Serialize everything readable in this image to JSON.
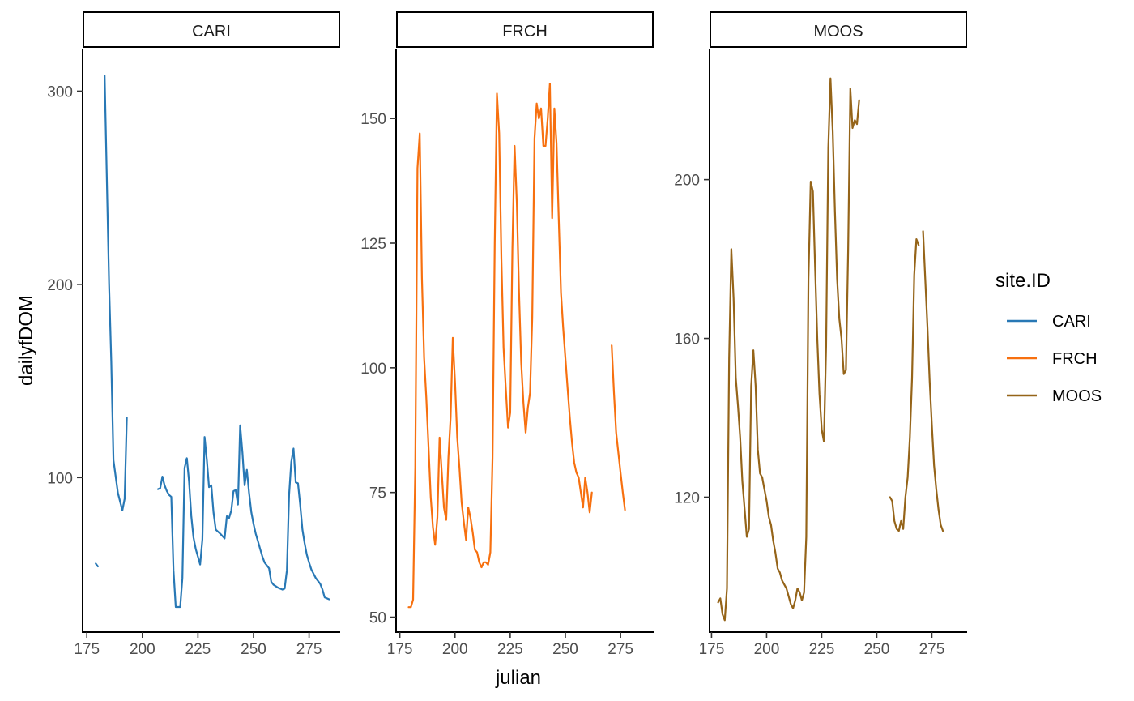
{
  "chart_data": {
    "type": "line",
    "xlabel": "julian",
    "ylabel": "dailyfDOM",
    "legend": {
      "title": "site.ID",
      "position": "right",
      "entries": [
        {
          "name": "CARI",
          "color": "#2878B5"
        },
        {
          "name": "FRCH",
          "color": "#F7700F"
        },
        {
          "name": "MOOS",
          "color": "#956419"
        }
      ]
    },
    "grid": false,
    "panels": [
      {
        "strip": "CARI",
        "color": "#2878B5",
        "xlim": [
          173.1,
          289
        ],
        "ylim": [
          20,
          322
        ],
        "xticks": [
          175,
          200,
          225,
          250,
          275
        ],
        "yticks": [
          100,
          200,
          300
        ],
        "segments": [
          [
            [
              179,
              55.5
            ],
            [
              180,
              54
            ]
          ],
          [
            [
              183,
              308
            ],
            [
              185,
              200
            ],
            [
              186,
              160
            ],
            [
              187,
              109
            ],
            [
              189,
              92
            ],
            [
              191,
              83
            ],
            [
              192,
              89
            ],
            [
              193,
              131
            ]
          ],
          [
            [
              207,
              94
            ],
            [
              208,
              94.5
            ],
            [
              209,
              100.5
            ],
            [
              210,
              96
            ],
            [
              211,
              93
            ],
            [
              212,
              91
            ],
            [
              213,
              90
            ],
            [
              214,
              52
            ],
            [
              215,
              33
            ],
            [
              217,
              33
            ],
            [
              218,
              48
            ],
            [
              219,
              105
            ],
            [
              220,
              110
            ],
            [
              221,
              98
            ],
            [
              222,
              80
            ],
            [
              223,
              69
            ],
            [
              224,
              63
            ],
            [
              225,
              59
            ],
            [
              226,
              55
            ],
            [
              227,
              68
            ],
            [
              228,
              121
            ],
            [
              229,
              109
            ],
            [
              230,
              95
            ],
            [
              231,
              96
            ],
            [
              232,
              82
            ],
            [
              233,
              73
            ],
            [
              235,
              71
            ],
            [
              237,
              68.5
            ],
            [
              238,
              80
            ],
            [
              239,
              79
            ],
            [
              240,
              83
            ],
            [
              241,
              93
            ],
            [
              242,
              93.5
            ],
            [
              243,
              86
            ],
            [
              244,
              127
            ],
            [
              245,
              113
            ],
            [
              246,
              96
            ],
            [
              247,
              104
            ],
            [
              248,
              92
            ],
            [
              249,
              82
            ],
            [
              250,
              76
            ],
            [
              251,
              71
            ],
            [
              252,
              67
            ],
            [
              253,
              63
            ],
            [
              254,
              59
            ],
            [
              255,
              56
            ],
            [
              257,
              53
            ],
            [
              258,
              46
            ],
            [
              259,
              44.5
            ],
            [
              261,
              43
            ],
            [
              263,
              42
            ],
            [
              264,
              42.5
            ],
            [
              265,
              52
            ],
            [
              266,
              91
            ],
            [
              267,
              108
            ],
            [
              268,
              115
            ],
            [
              269,
              97.5
            ],
            [
              270,
              97
            ],
            [
              271,
              86
            ],
            [
              272,
              73
            ],
            [
              273,
              66
            ],
            [
              274,
              60
            ],
            [
              275,
              56
            ],
            [
              276,
              52.5
            ],
            [
              278,
              48
            ],
            [
              280,
              45
            ],
            [
              281,
              42
            ],
            [
              282,
              38
            ],
            [
              284,
              37
            ]
          ]
        ]
      },
      {
        "strip": "FRCH",
        "color": "#F7700F",
        "xlim": [
          173.3,
          290
        ],
        "ylim": [
          47,
          164
        ],
        "xticks": [
          175,
          200,
          225,
          250,
          275
        ],
        "yticks": [
          50,
          75,
          100,
          125,
          150
        ],
        "segments": [
          [
            [
              179,
              52
            ],
            [
              180,
              52
            ],
            [
              181,
              53.5
            ],
            [
              182,
              80
            ],
            [
              183,
              140
            ],
            [
              184,
              147
            ],
            [
              185,
              118
            ],
            [
              186,
              102
            ],
            [
              187,
              94
            ],
            [
              188,
              84
            ],
            [
              189,
              74
            ],
            [
              190,
              68
            ],
            [
              191,
              64.5
            ],
            [
              192,
              70
            ],
            [
              193,
              86
            ],
            [
              194,
              79
            ],
            [
              195,
              72
            ],
            [
              196,
              69.5
            ],
            [
              197,
              82
            ],
            [
              198,
              90
            ],
            [
              199,
              106
            ],
            [
              200,
              97
            ],
            [
              201,
              86
            ],
            [
              202,
              80
            ],
            [
              203,
              73
            ],
            [
              204,
              69
            ],
            [
              205,
              65.5
            ],
            [
              206,
              72
            ],
            [
              207,
              70
            ],
            [
              208,
              67
            ],
            [
              209,
              63.5
            ],
            [
              210,
              63
            ],
            [
              211,
              61
            ],
            [
              212,
              60
            ],
            [
              213,
              61
            ],
            [
              214,
              61
            ],
            [
              215,
              60.5
            ],
            [
              216,
              63
            ],
            [
              217,
              82
            ],
            [
              218,
              125
            ],
            [
              219,
              155
            ],
            [
              220,
              147
            ],
            [
              221,
              122
            ],
            [
              222,
              104
            ],
            [
              223,
              96
            ],
            [
              224,
              88
            ],
            [
              225,
              91
            ],
            [
              226,
              124
            ],
            [
              227,
              144.5
            ],
            [
              228,
              133
            ],
            [
              229,
              115
            ],
            [
              230,
              101
            ],
            [
              231,
              93
            ],
            [
              232,
              87
            ],
            [
              233,
              92
            ],
            [
              234,
              95
            ],
            [
              235,
              110
            ],
            [
              236,
              146
            ],
            [
              237,
              153
            ],
            [
              238,
              150
            ],
            [
              239,
              152
            ],
            [
              240,
              144.5
            ],
            [
              241,
              144.5
            ],
            [
              242,
              150
            ],
            [
              243,
              157
            ],
            [
              244,
              130
            ],
            [
              245,
              152
            ],
            [
              246,
              145
            ],
            [
              247,
              130
            ],
            [
              248,
              115
            ],
            [
              249,
              108
            ],
            [
              250,
              102
            ],
            [
              251,
              96
            ],
            [
              252,
              90
            ],
            [
              253,
              85
            ],
            [
              254,
              81
            ],
            [
              255,
              79
            ],
            [
              256,
              78
            ],
            [
              257,
              75
            ],
            [
              258,
              72
            ],
            [
              259,
              78
            ],
            [
              260,
              75
            ],
            [
              261,
              71
            ],
            [
              262,
              75
            ]
          ],
          [
            [
              271,
              104.5
            ],
            [
              272,
              95
            ],
            [
              273,
              87
            ],
            [
              274,
              83
            ],
            [
              275,
              79
            ],
            [
              276,
              75
            ],
            [
              277,
              71.5
            ]
          ]
        ]
      },
      {
        "strip": "MOOS",
        "color": "#956419",
        "xlim": [
          174.1,
          291
        ],
        "ylim": [
          86,
          233
        ],
        "xticks": [
          175,
          200,
          225,
          250,
          275
        ],
        "yticks": [
          120,
          160,
          200
        ],
        "segments": [
          [
            [
              178,
              93.5
            ],
            [
              179,
              94.5
            ],
            [
              180,
              90.5
            ],
            [
              181,
              89
            ],
            [
              182,
              97
            ],
            [
              183,
              155
            ],
            [
              184,
              182.5
            ],
            [
              185,
              170
            ],
            [
              186,
              150
            ],
            [
              187,
              143
            ],
            [
              188,
              135
            ],
            [
              189,
              124
            ],
            [
              190,
              117
            ],
            [
              191,
              110
            ],
            [
              192,
              112
            ],
            [
              193,
              148
            ],
            [
              194,
              157
            ],
            [
              195,
              148
            ],
            [
              196,
              132
            ],
            [
              197,
              126
            ],
            [
              198,
              125
            ],
            [
              199,
              122
            ],
            [
              200,
              119
            ],
            [
              201,
              115
            ],
            [
              202,
              113
            ],
            [
              203,
              109
            ],
            [
              204,
              106
            ],
            [
              205,
              102
            ],
            [
              206,
              101
            ],
            [
              207,
              99
            ],
            [
              208,
              98
            ],
            [
              209,
              97
            ],
            [
              210,
              95
            ],
            [
              211,
              93
            ],
            [
              212,
              92
            ],
            [
              213,
              94
            ],
            [
              214,
              97
            ],
            [
              215,
              96
            ],
            [
              216,
              94
            ],
            [
              217,
              96
            ],
            [
              218,
              110
            ],
            [
              219,
              175
            ],
            [
              220,
              199.5
            ],
            [
              221,
              197
            ],
            [
              222,
              178
            ],
            [
              223,
              160
            ],
            [
              224,
              146
            ],
            [
              225,
              137
            ],
            [
              226,
              134
            ],
            [
              227,
              158
            ],
            [
              228,
              208
            ],
            [
              229,
              225.5
            ],
            [
              230,
              212
            ],
            [
              231,
              192
            ],
            [
              232,
              175
            ],
            [
              233,
              165
            ],
            [
              234,
              160
            ],
            [
              235,
              151
            ],
            [
              236,
              152
            ],
            [
              237,
              182
            ],
            [
              238,
              223
            ],
            [
              239,
              213
            ],
            [
              240,
              215
            ],
            [
              241,
              214
            ],
            [
              242,
              220
            ]
          ],
          [
            [
              256,
              120
            ],
            [
              257,
              119
            ],
            [
              258,
              114
            ],
            [
              259,
              112
            ],
            [
              260,
              111.5
            ],
            [
              261,
              114
            ],
            [
              262,
              112
            ],
            [
              263,
              120
            ],
            [
              264,
              125
            ],
            [
              265,
              135
            ],
            [
              266,
              150
            ],
            [
              267,
              176
            ],
            [
              268,
              185
            ],
            [
              269,
              183.5
            ]
          ],
          [
            [
              271,
              187
            ],
            [
              272,
              175
            ],
            [
              273,
              163
            ],
            [
              274,
              149
            ],
            [
              275,
              138
            ],
            [
              276,
              128
            ],
            [
              277,
              122
            ],
            [
              278,
              117
            ],
            [
              279,
              113
            ],
            [
              280,
              111.5
            ]
          ]
        ]
      }
    ]
  }
}
